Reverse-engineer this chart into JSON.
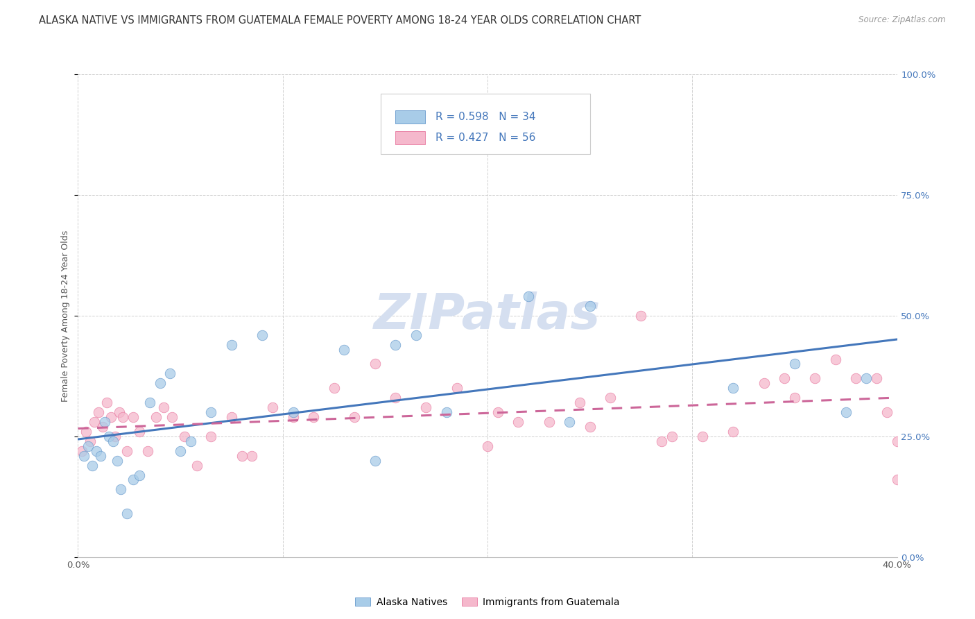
{
  "title": "ALASKA NATIVE VS IMMIGRANTS FROM GUATEMALA FEMALE POVERTY AMONG 18-24 YEAR OLDS CORRELATION CHART",
  "source": "Source: ZipAtlas.com",
  "ylabel": "Female Poverty Among 18-24 Year Olds",
  "ytick_vals": [
    0,
    25,
    50,
    75,
    100
  ],
  "xtick_vals": [
    0,
    10,
    20,
    30,
    40
  ],
  "legend_label1": "Alaska Natives",
  "legend_label2": "Immigrants from Guatemala",
  "r1": 0.598,
  "n1": 34,
  "r2": 0.427,
  "n2": 56,
  "color_blue_fill": "#a8cce8",
  "color_blue_edge": "#6699cc",
  "color_pink_fill": "#f5b8cc",
  "color_pink_edge": "#e87aa0",
  "color_blue_line": "#4477bb",
  "color_pink_line": "#cc6699",
  "blue_x": [
    0.3,
    0.5,
    0.7,
    0.9,
    1.1,
    1.3,
    1.5,
    1.7,
    1.9,
    2.1,
    2.4,
    2.7,
    3.0,
    3.5,
    4.0,
    4.5,
    5.0,
    5.5,
    6.5,
    7.5,
    9.0,
    10.5,
    13.0,
    14.5,
    15.5,
    16.5,
    18.0,
    22.0,
    24.0,
    25.0,
    32.0,
    35.0,
    37.5,
    38.5
  ],
  "blue_y": [
    21,
    23,
    19,
    22,
    21,
    28,
    25,
    24,
    20,
    14,
    9,
    16,
    17,
    32,
    36,
    38,
    22,
    24,
    30,
    44,
    46,
    30,
    43,
    20,
    44,
    46,
    30,
    54,
    28,
    52,
    35,
    40,
    30,
    37
  ],
  "pink_x": [
    0.2,
    0.4,
    0.6,
    0.8,
    1.0,
    1.2,
    1.4,
    1.6,
    1.8,
    2.0,
    2.2,
    2.4,
    2.7,
    3.0,
    3.4,
    3.8,
    4.2,
    4.6,
    5.2,
    5.8,
    6.5,
    7.5,
    8.5,
    9.5,
    10.5,
    11.5,
    12.5,
    13.5,
    14.5,
    15.5,
    17.0,
    18.5,
    20.0,
    21.5,
    23.0,
    25.0,
    26.0,
    27.5,
    29.0,
    30.5,
    32.0,
    33.5,
    35.0,
    36.0,
    37.0,
    38.0,
    39.0,
    39.5,
    40.0,
    40.0,
    40.5,
    8.0,
    20.5,
    24.5,
    28.5,
    34.5
  ],
  "pink_y": [
    22,
    26,
    24,
    28,
    30,
    27,
    32,
    29,
    25,
    30,
    29,
    22,
    29,
    26,
    22,
    29,
    31,
    29,
    25,
    19,
    25,
    29,
    21,
    31,
    29,
    29,
    35,
    29,
    40,
    33,
    31,
    35,
    23,
    28,
    28,
    27,
    33,
    50,
    25,
    25,
    26,
    36,
    33,
    37,
    41,
    37,
    37,
    30,
    24,
    16,
    38,
    21,
    30,
    32,
    24,
    37
  ],
  "watermark": "ZIPatlas",
  "background_color": "#ffffff",
  "grid_color": "#d0d0d0",
  "title_fontsize": 10.5,
  "axis_label_fontsize": 9,
  "tick_fontsize": 9.5,
  "right_tick_color": "#4477bb",
  "watermark_color": "#d5dff0",
  "watermark_fontsize": 52,
  "source_fontsize": 8.5
}
